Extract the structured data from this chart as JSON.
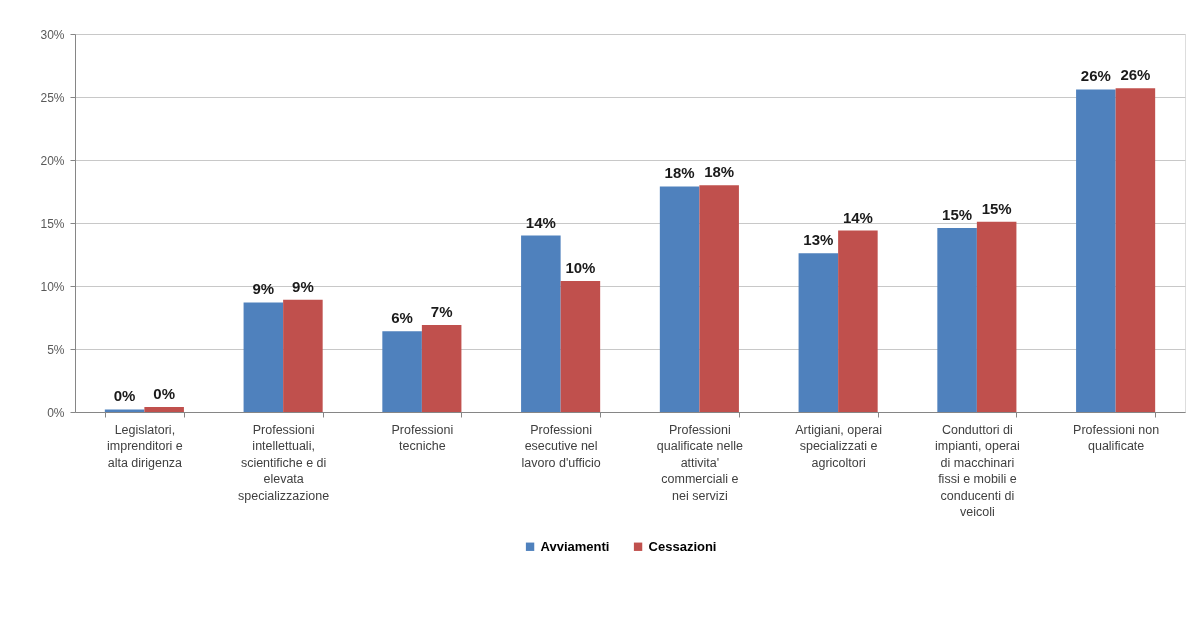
{
  "chart_data": {
    "type": "bar",
    "categories": [
      "Legislatori, imprenditori e alta dirigenza",
      "Professioni intellettuali, scientifiche e di elevata specializzazione",
      "Professioni tecniche",
      "Professioni esecutive nel lavoro d'ufficio",
      "Professioni qualificate nelle attivita' commerciali e nei servizi",
      "Artigiani, operai specializzati e agricoltori",
      "Conduttori di impianti, operai di macchinari fissi e mobili e conducenti di veicoli",
      "Professioni non qualificate"
    ],
    "series": [
      {
        "name": "Avviamenti",
        "color": "#4f81bd",
        "values": [
          0.2,
          8.7,
          6.4,
          14.0,
          17.9,
          12.6,
          14.6,
          25.6
        ],
        "value_labels": [
          "0%",
          "9%",
          "6%",
          "14%",
          "18%",
          "13%",
          "15%",
          "26%"
        ]
      },
      {
        "name": "Cessazioni",
        "color": "#c0504d",
        "values": [
          0.4,
          8.9,
          6.9,
          10.4,
          18.0,
          14.4,
          15.1,
          25.7
        ],
        "value_labels": [
          "0%",
          "9%",
          "7%",
          "10%",
          "18%",
          "14%",
          "15%",
          "26%"
        ]
      }
    ],
    "ylim": [
      0,
      30
    ],
    "yticks": [
      {
        "value": 0,
        "label": "0%"
      },
      {
        "value": 5,
        "label": "5%"
      },
      {
        "value": 10,
        "label": "10%"
      },
      {
        "value": 15,
        "label": "15%"
      },
      {
        "value": 20,
        "label": "20%"
      },
      {
        "value": 25,
        "label": "25%"
      },
      {
        "value": 30,
        "label": "30%"
      }
    ],
    "grid": "y",
    "legend": "bottom"
  }
}
